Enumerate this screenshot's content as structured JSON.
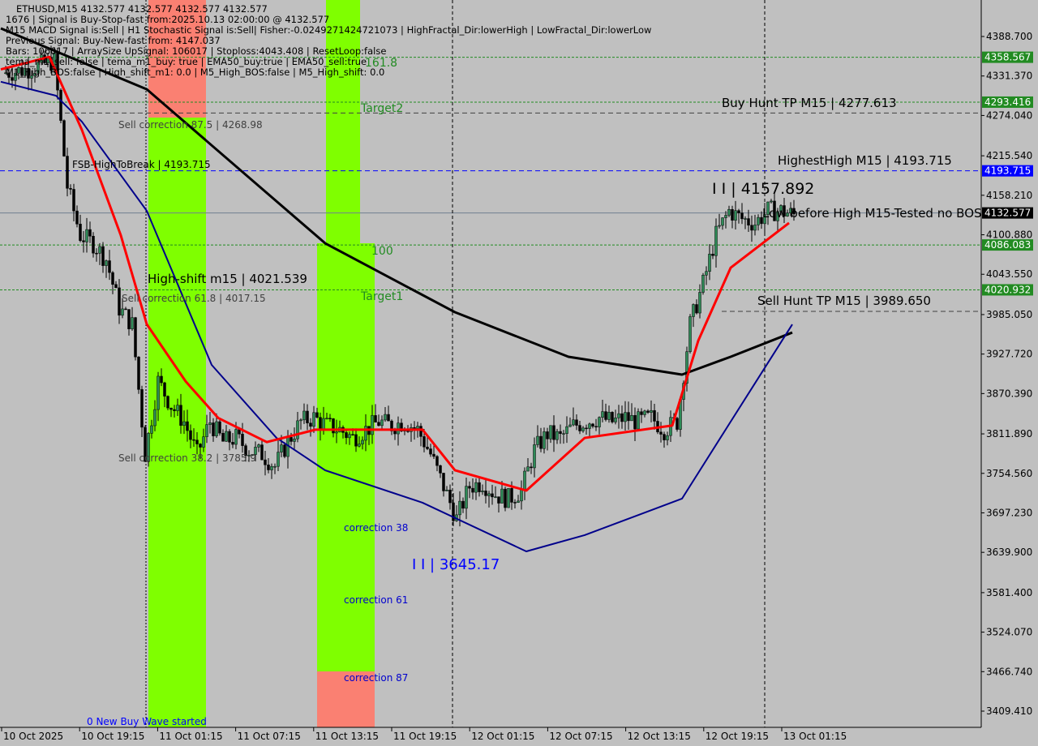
{
  "header": {
    "lines": [
      "ETHUSD,M15  4132.577 4132.577 4132.577 4132.577",
      "1676 | Signal is Buy-Stop-fast from:2025.10.13 02:00:00 @ 4132.577",
      "M15 MACD Signal is:Sell | H1 Stochastic Signal is:Sell| Fisher:-0.0249271424721073 | HighFractal_Dir:lowerHigh | LowFractal_Dir:lowerLow",
      "Previous Signal: Buy-New-fast from: 4147.037",
      "Bars: 106017 | ArraySize UpSignal: 106017 | Stoploss:4043.408 | ResetLoop:false",
      "tema_m1_sell: false | tema_m1_buy: true | EMA50_buy:true | EMA50_sell:true",
      "M1_High_BOS:false | High_shift_m1: 0.0 | M5_High_BOS:false | M5_High_shift: 0.0"
    ]
  },
  "annotations": {
    "fib_161": "161.8",
    "target2": "Target2",
    "fib_100": "100",
    "target1": "Target1",
    "sell_corr_875": "Sell correction 87.5 | 4268.98",
    "fsb_high": "FSB-HighToBreak | 4193.715",
    "high_shift": "High-shift m15 | 4021.539",
    "sell_corr_618": "Sell correction 61.8 | 4017.15",
    "sell_corr_382": "Sell correction 38.2 | 3785.9",
    "corr38": "correction 38",
    "corr61": "correction 61",
    "corr87": "correction 87",
    "low_label": "I I | 3645.17",
    "high_label": "I I | 4157.892",
    "buy_hunt": "Buy Hunt TP M15 | 4277.613",
    "highest_high": "HighestHigh   M15 | 4193.715",
    "low_before_high": "Low before High  M15-Tested no BOS",
    "sell_hunt": "Sell Hunt TP M15 | 3989.650",
    "new_wave": "0 New Buy Wave started"
  },
  "colors": {
    "background": "#c0c0c0",
    "green_zone": "#7fff00",
    "salmon_zone": "#fa8072",
    "ema_red": "#ff0000",
    "ma_black": "#000000",
    "ma_navy": "#00008b",
    "level_green": "#228b22",
    "level_blue": "#0000ff",
    "current_price": "#000000"
  },
  "chart_data": {
    "type": "candlestick",
    "symbol": "ETHUSD",
    "timeframe": "M15",
    "ylim": [
      3380,
      4420
    ],
    "y_ticks": [
      "4388.700",
      "4331.370",
      "4274.040",
      "4215.540",
      "4158.210",
      "4100.880",
      "4043.550",
      "3985.050",
      "3927.720",
      "3870.390",
      "3811.890",
      "3754.560",
      "3697.230",
      "3639.900",
      "3581.400",
      "3524.070",
      "3466.740",
      "3409.410"
    ],
    "x_ticks": [
      "10 Oct 2025",
      "10 Oct 19:15",
      "11 Oct 01:15",
      "11 Oct 07:15",
      "11 Oct 13:15",
      "11 Oct 19:15",
      "12 Oct 01:15",
      "12 Oct 07:15",
      "12 Oct 13:15",
      "12 Oct 19:15",
      "13 Oct 01:15"
    ],
    "close_hourly_start": "10 Oct 11:15",
    "close_hourly": [
      4335.7,
      4338.1,
      4341.6,
      4347.5,
      4353.4,
      4170.9,
      4100.3,
      4088.5,
      4065.0,
      3994.4,
      3970.8,
      3782.5,
      3888.4,
      3853.1,
      3829.6,
      3782.5,
      3829.6,
      3800.2,
      3806.1,
      3788.4,
      3782.5,
      3764.9,
      3800.2,
      3829.6,
      3835.5,
      3823.7,
      3817.9,
      3806.1,
      3817.9,
      3829.6,
      3823.7,
      3829.6,
      3817.9,
      3782.5,
      3735.5,
      3688.4,
      3735.5,
      3741.4,
      3723.7,
      3717.8,
      3729.6,
      3788.4,
      3812.0,
      3806.1,
      3823.7,
      3829.6,
      3835.5,
      3829.6,
      3835.5,
      3829.6,
      3835.5,
      3817.9,
      3829.6,
      3970.8,
      4029.7,
      4100.3,
      4135.6,
      4123.9,
      4118.0,
      4135.6,
      4135.6,
      4129.8
    ],
    "moving_averages": [
      {
        "color": "#000000",
        "points": [
          [
            "10 Oct 11:00",
            4400.5
          ],
          [
            "10 Oct 22:15",
            4312
          ],
          [
            "11 Oct 12:00",
            4088.5
          ],
          [
            "11 Oct 22:00",
            3988.5
          ],
          [
            "12 Oct 06:45",
            3923.8
          ],
          [
            "12 Oct 15:30",
            3897.9
          ],
          [
            "12 Oct 19:15",
            3923.8
          ],
          [
            "13 Oct 00:00",
            3959
          ]
        ]
      },
      {
        "color": "#00008b",
        "points": [
          [
            "10 Oct 11:00",
            4323
          ],
          [
            "10 Oct 15:15",
            4302.8
          ],
          [
            "10 Oct 17:15",
            4265
          ],
          [
            "10 Oct 22:15",
            4135.6
          ],
          [
            "11 Oct 03:15",
            3912
          ],
          [
            "11 Oct 08:15",
            3806
          ],
          [
            "11 Oct 12:00",
            3759
          ],
          [
            "11 Oct 19:30",
            3712
          ],
          [
            "12 Oct 03:30",
            3641.3
          ],
          [
            "12 Oct 08:00",
            3664.9
          ],
          [
            "12 Oct 15:30",
            3717.8
          ],
          [
            "12 Oct 19:15",
            3829.6
          ],
          [
            "13 Oct 00:00",
            3970.8
          ]
        ]
      },
      {
        "color": "#ff0000",
        "points": [
          [
            "10 Oct 11:00",
            4341
          ],
          [
            "10 Oct 14:45",
            4359
          ],
          [
            "10 Oct 17:15",
            4253
          ],
          [
            "10 Oct 20:15",
            4100
          ],
          [
            "10 Oct 22:15",
            3971
          ],
          [
            "11 Oct 01:15",
            3888
          ],
          [
            "11 Oct 03:45",
            3835
          ],
          [
            "11 Oct 07:30",
            3800
          ],
          [
            "11 Oct 11:15",
            3818
          ],
          [
            "11 Oct 19:30",
            3818
          ],
          [
            "11 Oct 22:00",
            3759
          ],
          [
            "12 Oct 03:30",
            3729.6
          ],
          [
            "12 Oct 08:00",
            3806
          ],
          [
            "12 Oct 14:45",
            3824
          ],
          [
            "12 Oct 16:45",
            3947
          ],
          [
            "12 Oct 19:15",
            4053
          ],
          [
            "12 Oct 23:45",
            4118
          ]
        ]
      }
    ],
    "levels": [
      {
        "price": 4358.567,
        "label": "4358.567",
        "color": "#228b22",
        "style": "dotted"
      },
      {
        "price": 4293.416,
        "label": "4293.416",
        "color": "#228b22",
        "style": "dotted"
      },
      {
        "price": 4277.613,
        "color": "#404040",
        "style": "dashed"
      },
      {
        "price": 4193.715,
        "label": "4193.715",
        "color": "#0000ff",
        "style": "dashed"
      },
      {
        "price": 4132.577,
        "label": "4132.577",
        "color": "#000000",
        "style": "solid"
      },
      {
        "price": 4086.083,
        "label": "4086.083",
        "color": "#228b22",
        "style": "dotted"
      },
      {
        "price": 4020.932,
        "label": "4020.932",
        "color": "#228b22",
        "style": "dotted"
      }
    ]
  }
}
